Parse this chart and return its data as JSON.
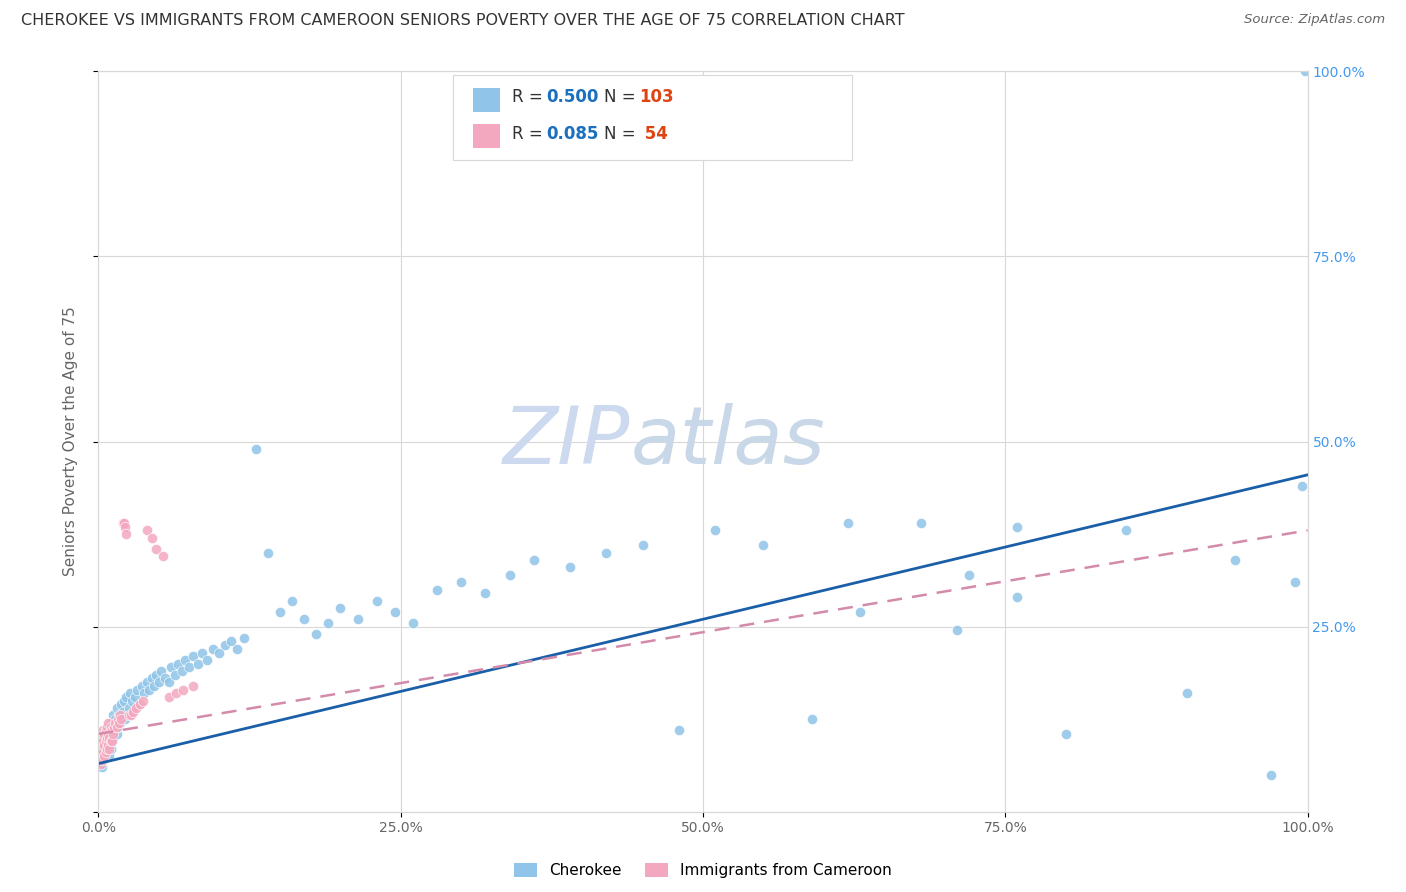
{
  "title": "CHEROKEE VS IMMIGRANTS FROM CAMEROON SENIORS POVERTY OVER THE AGE OF 75 CORRELATION CHART",
  "source": "Source: ZipAtlas.com",
  "ylabel": "Seniors Poverty Over the Age of 75",
  "xlim": [
    0,
    1.0
  ],
  "ylim": [
    0,
    1.0
  ],
  "cherokee_color": "#90c4e8",
  "cameroon_color": "#f4a8bf",
  "cherokee_R": 0.5,
  "cherokee_N": 103,
  "cameroon_R": 0.085,
  "cameroon_N": 54,
  "cherokee_line_color": "#1a5fa8",
  "cameroon_line_color": "#d48aaa",
  "watermark_zip": "ZIP",
  "watermark_atlas": "atlas",
  "watermark_color": "#ccd9ee",
  "background_color": "#ffffff",
  "grid_color": "#d8d8d8",
  "title_color": "#333333",
  "label_color": "#666666",
  "right_tick_color": "#4499ee",
  "legend_R_color": "#1a6fbe",
  "legend_N_color": "#dd4411",
  "cherokee_x": [
    0.002,
    0.003,
    0.004,
    0.004,
    0.005,
    0.005,
    0.006,
    0.006,
    0.007,
    0.007,
    0.008,
    0.008,
    0.009,
    0.009,
    0.01,
    0.01,
    0.011,
    0.012,
    0.012,
    0.013,
    0.014,
    0.015,
    0.015,
    0.016,
    0.017,
    0.018,
    0.019,
    0.02,
    0.021,
    0.022,
    0.023,
    0.025,
    0.026,
    0.028,
    0.03,
    0.032,
    0.034,
    0.036,
    0.038,
    0.04,
    0.042,
    0.044,
    0.046,
    0.048,
    0.05,
    0.052,
    0.055,
    0.058,
    0.06,
    0.063,
    0.066,
    0.069,
    0.072,
    0.075,
    0.078,
    0.082,
    0.086,
    0.09,
    0.095,
    0.1,
    0.105,
    0.11,
    0.115,
    0.12,
    0.13,
    0.14,
    0.15,
    0.16,
    0.17,
    0.18,
    0.19,
    0.2,
    0.215,
    0.23,
    0.245,
    0.26,
    0.28,
    0.3,
    0.32,
    0.34,
    0.36,
    0.39,
    0.42,
    0.45,
    0.48,
    0.51,
    0.55,
    0.59,
    0.63,
    0.68,
    0.72,
    0.76,
    0.8,
    0.85,
    0.9,
    0.94,
    0.97,
    0.99,
    0.995,
    0.998,
    0.62,
    0.71,
    0.76
  ],
  "cherokee_y": [
    0.08,
    0.06,
    0.07,
    0.09,
    0.075,
    0.1,
    0.085,
    0.11,
    0.08,
    0.095,
    0.09,
    0.105,
    0.075,
    0.115,
    0.085,
    0.12,
    0.095,
    0.1,
    0.13,
    0.11,
    0.125,
    0.105,
    0.14,
    0.115,
    0.13,
    0.12,
    0.145,
    0.135,
    0.15,
    0.125,
    0.155,
    0.14,
    0.16,
    0.15,
    0.155,
    0.165,
    0.145,
    0.17,
    0.16,
    0.175,
    0.165,
    0.18,
    0.17,
    0.185,
    0.175,
    0.19,
    0.18,
    0.175,
    0.195,
    0.185,
    0.2,
    0.19,
    0.205,
    0.195,
    0.21,
    0.2,
    0.215,
    0.205,
    0.22,
    0.215,
    0.225,
    0.23,
    0.22,
    0.235,
    0.49,
    0.35,
    0.27,
    0.285,
    0.26,
    0.24,
    0.255,
    0.275,
    0.26,
    0.285,
    0.27,
    0.255,
    0.3,
    0.31,
    0.295,
    0.32,
    0.34,
    0.33,
    0.35,
    0.36,
    0.11,
    0.38,
    0.36,
    0.125,
    0.27,
    0.39,
    0.32,
    0.385,
    0.105,
    0.38,
    0.16,
    0.34,
    0.05,
    0.31,
    0.44,
    1.0,
    0.39,
    0.245,
    0.29
  ],
  "cameroon_x": [
    0.001,
    0.001,
    0.002,
    0.002,
    0.003,
    0.003,
    0.003,
    0.004,
    0.004,
    0.004,
    0.005,
    0.005,
    0.005,
    0.006,
    0.006,
    0.006,
    0.007,
    0.007,
    0.007,
    0.008,
    0.008,
    0.008,
    0.009,
    0.009,
    0.01,
    0.01,
    0.011,
    0.011,
    0.012,
    0.013,
    0.014,
    0.015,
    0.016,
    0.017,
    0.018,
    0.019,
    0.02,
    0.021,
    0.022,
    0.023,
    0.025,
    0.027,
    0.029,
    0.031,
    0.034,
    0.037,
    0.04,
    0.044,
    0.048,
    0.053,
    0.058,
    0.064,
    0.07,
    0.078
  ],
  "cameroon_y": [
    0.075,
    0.095,
    0.065,
    0.085,
    0.07,
    0.09,
    0.1,
    0.08,
    0.095,
    0.11,
    0.075,
    0.09,
    0.105,
    0.08,
    0.095,
    0.11,
    0.085,
    0.1,
    0.115,
    0.09,
    0.105,
    0.12,
    0.085,
    0.1,
    0.095,
    0.115,
    0.095,
    0.11,
    0.105,
    0.115,
    0.12,
    0.115,
    0.125,
    0.12,
    0.13,
    0.125,
    0.39,
    0.39,
    0.385,
    0.375,
    0.13,
    0.13,
    0.135,
    0.14,
    0.145,
    0.15,
    0.38,
    0.37,
    0.355,
    0.345,
    0.155,
    0.16,
    0.165,
    0.17
  ],
  "cherokee_line_x": [
    0.0,
    1.0
  ],
  "cherokee_line_y": [
    0.065,
    0.455
  ],
  "cameroon_line_x": [
    0.0,
    1.0
  ],
  "cameroon_line_y": [
    0.105,
    0.38
  ]
}
